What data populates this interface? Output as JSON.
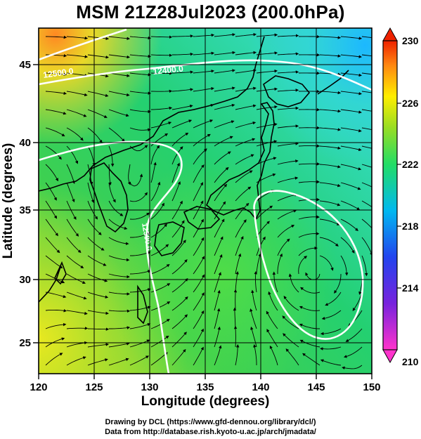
{
  "title": "MSM 21Z28Jul2023 (200.0hPa)",
  "x_axis": {
    "label": "Longitude (degrees)",
    "ticks": [
      "120",
      "125",
      "130",
      "135",
      "140",
      "145",
      "150"
    ],
    "range": [
      120,
      150
    ]
  },
  "y_axis": {
    "label": "Latitude  (degrees)",
    "ticks": [
      "25",
      "30",
      "35",
      "40",
      "45"
    ],
    "range": [
      22.4,
      47.6
    ]
  },
  "colorbar": {
    "ticks": [
      "230",
      "226",
      "222",
      "218",
      "214",
      "210"
    ],
    "range": [
      210,
      230
    ],
    "colors": [
      "#ff33cc",
      "#2222cc",
      "#00bbee",
      "#22cc66",
      "#99dd22",
      "#ffee00",
      "#ff7711",
      "#ee2200"
    ]
  },
  "contours": [
    {
      "label": "12500.0",
      "lat_approx": 45.3
    },
    {
      "label": "12400.0",
      "lat_approx": 45.5
    },
    {
      "label": "12500.0",
      "lon_approx": 131.0
    }
  ],
  "credits": {
    "line1": "Drawing by DCL (https://www.gfd-dennou.org/library/dcl/)",
    "line2": "Data from http://database.rish.kyoto-u.ac.jp/arch/jmadata/"
  }
}
